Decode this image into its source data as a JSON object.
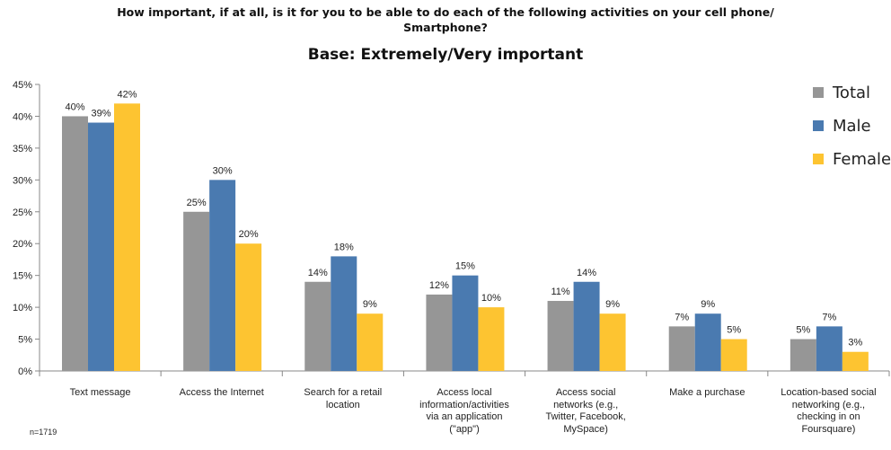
{
  "chart_data": {
    "type": "bar",
    "title": "How important, if at all, is it for you to be able to do each of the following activities on your cell phone/ Smartphone?",
    "title_lines": [
      "How important, if at all, is it for you to be able to do each of the following activities on your cell phone/",
      "Smartphone?"
    ],
    "subtitle": "Base: Extremely/Very important",
    "categories": [
      "Text message",
      "Access the Internet",
      "Search for a retail location",
      "Access local information/activities via an application (\"app\")",
      "Access social networks (e.g., Twitter, Facebook, MySpace)",
      "Make a purchase",
      "Location-based social networking (e.g., checking in on Foursquare)"
    ],
    "category_lines": [
      [
        "Text message"
      ],
      [
        "Access the Internet"
      ],
      [
        "Search for a retail",
        "location"
      ],
      [
        "Access local",
        "information/activities",
        "via an application",
        "(\"app\")"
      ],
      [
        "Access social",
        "networks (e.g.,",
        "Twitter, Facebook,",
        "MySpace)"
      ],
      [
        "Make a purchase"
      ],
      [
        "Location-based social",
        "networking (e.g.,",
        "checking in on",
        "Foursquare)"
      ]
    ],
    "series": [
      {
        "name": "Total",
        "color": "#969696",
        "values": [
          40,
          25,
          14,
          12,
          11,
          7,
          5
        ],
        "labels": [
          "40%",
          "25%",
          "14%",
          "12%",
          "11%",
          "7%",
          "5%"
        ]
      },
      {
        "name": "Male",
        "color": "#4a7ab0",
        "values": [
          39,
          30,
          18,
          15,
          14,
          9,
          7
        ],
        "labels": [
          "39%",
          "30%",
          "18%",
          "15%",
          "14%",
          "9%",
          "7%"
        ]
      },
      {
        "name": "Female",
        "color": "#fdc431",
        "values": [
          42,
          20,
          9,
          10,
          9,
          5,
          3
        ],
        "labels": [
          "42%",
          "20%",
          "9%",
          "10%",
          "9%",
          "5%",
          "3%"
        ]
      }
    ],
    "yticks": [
      0,
      5,
      10,
      15,
      20,
      25,
      30,
      35,
      40,
      45
    ],
    "ytick_labels": [
      "0%",
      "5%",
      "10%",
      "15%",
      "20%",
      "25%",
      "30%",
      "35%",
      "40%",
      "45%"
    ],
    "ylim": [
      0,
      45
    ],
    "xlabel": "",
    "ylabel": "",
    "grid": false,
    "legend_position": "top-right",
    "note": "n=1719"
  }
}
